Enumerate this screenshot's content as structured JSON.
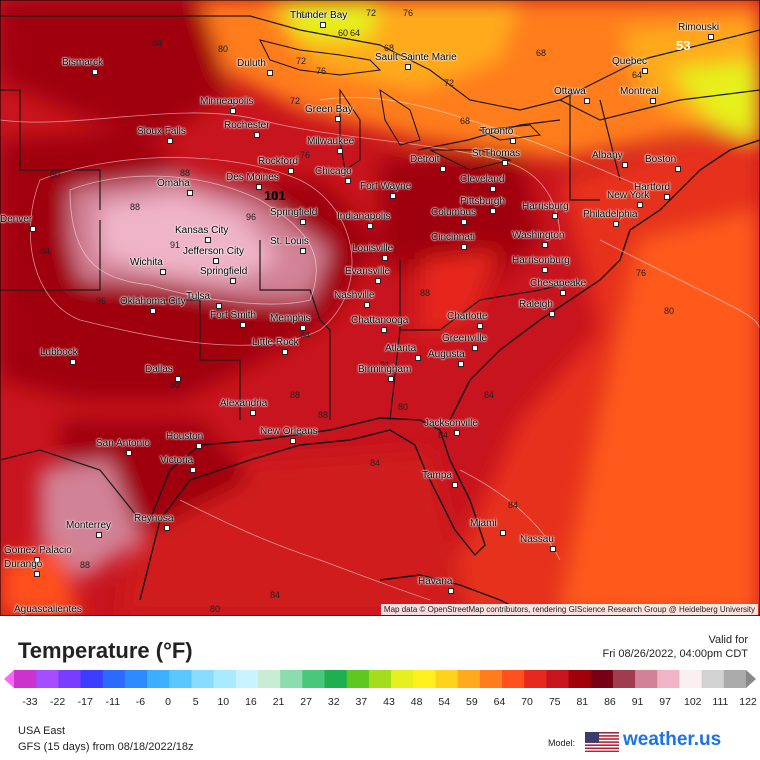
{
  "map": {
    "attribution": "Map data © OpenStreetMap contributors, rendering GIScience Research Group @ Heidelberg University",
    "cities": [
      {
        "name": "Thunder Bay"
      },
      {
        "name": "Rimouski"
      },
      {
        "name": "Bismarck"
      },
      {
        "name": "Duluth"
      },
      {
        "name": "Sault Sainte Marie"
      },
      {
        "name": "Quebec"
      },
      {
        "name": "Ottawa"
      },
      {
        "name": "Montreal"
      },
      {
        "name": "Minneapolis"
      },
      {
        "name": "Green Bay"
      },
      {
        "name": "Rochester"
      },
      {
        "name": "Sioux Falls"
      },
      {
        "name": "Milwaukee"
      },
      {
        "name": "Toronto"
      },
      {
        "name": "Albany"
      },
      {
        "name": "Boston"
      },
      {
        "name": "St Thomas"
      },
      {
        "name": "Rockford"
      },
      {
        "name": "Detroit"
      },
      {
        "name": "Chicago"
      },
      {
        "name": "Des Moines"
      },
      {
        "name": "Omaha"
      },
      {
        "name": "Cleveland"
      },
      {
        "name": "Hartford"
      },
      {
        "name": "Fort Wayne"
      },
      {
        "name": "New York"
      },
      {
        "name": "Pittsburgh"
      },
      {
        "name": "Harrisburg"
      },
      {
        "name": "Philadelphia"
      },
      {
        "name": "Springfield"
      },
      {
        "name": "Indianapolis"
      },
      {
        "name": "Columbus"
      },
      {
        "name": "Kansas City"
      },
      {
        "name": "Cincinnati"
      },
      {
        "name": "St. Louis"
      },
      {
        "name": "Washington"
      },
      {
        "name": "Jefferson City"
      },
      {
        "name": "Louisville"
      },
      {
        "name": "Wichita"
      },
      {
        "name": "Harrisonburg"
      },
      {
        "name": "Springfield"
      },
      {
        "name": "Evansville"
      },
      {
        "name": "Chesapeake"
      },
      {
        "name": "Oklahoma City"
      },
      {
        "name": "Tulsa"
      },
      {
        "name": "Nashville"
      },
      {
        "name": "Raleigh"
      },
      {
        "name": "Fort Smith"
      },
      {
        "name": "Memphis"
      },
      {
        "name": "Chattanooga"
      },
      {
        "name": "Charlotte"
      },
      {
        "name": "Greenville"
      },
      {
        "name": "Little Rock"
      },
      {
        "name": "Lubbock"
      },
      {
        "name": "Atlanta"
      },
      {
        "name": "Augusta"
      },
      {
        "name": "Birmingham"
      },
      {
        "name": "Dallas"
      },
      {
        "name": "Alexandria"
      },
      {
        "name": "Jacksonville"
      },
      {
        "name": "San Antonio"
      },
      {
        "name": "Houston"
      },
      {
        "name": "New Orleans"
      },
      {
        "name": "Victoria"
      },
      {
        "name": "Tampa"
      },
      {
        "name": "Miami"
      },
      {
        "name": "Monterrey"
      },
      {
        "name": "Reynosa"
      },
      {
        "name": "Nassau"
      },
      {
        "name": "Gomez Palacio"
      },
      {
        "name": "Havana"
      },
      {
        "name": "Durango"
      },
      {
        "name": "Aguascalientes"
      },
      {
        "name": "Denver"
      }
    ],
    "isolabels": [
      "60",
      "64",
      "72",
      "76",
      "68",
      "72",
      "76",
      "80",
      "84",
      "88",
      "91",
      "96",
      "101",
      "53",
      "64",
      "68",
      "72",
      "76",
      "80",
      "84",
      "88",
      "91",
      "96",
      "80",
      "84",
      "88",
      "91",
      "76",
      "80",
      "84",
      "88",
      "64",
      "68",
      "72",
      "84",
      "88",
      "84",
      "80",
      "84",
      "88",
      "76",
      "84",
      "80"
    ]
  },
  "legend": {
    "title": "Temperature (°F)",
    "valid_label": "Valid for",
    "valid_time": "Fri 08/26/2022, 04:00pm CDT",
    "ticks": [
      "-33",
      "-22",
      "-17",
      "-11",
      "-6",
      "0",
      "5",
      "10",
      "16",
      "21",
      "27",
      "32",
      "37",
      "43",
      "48",
      "54",
      "59",
      "64",
      "70",
      "75",
      "81",
      "86",
      "91",
      "97",
      "102",
      "111",
      "122"
    ],
    "colors": [
      "#cc33cc",
      "#a64dff",
      "#7a3dff",
      "#3d3dff",
      "#2d6bff",
      "#2d8bff",
      "#3cb0ff",
      "#5ac8ff",
      "#88dcff",
      "#aaeaff",
      "#c8f3ff",
      "#c9ecd4",
      "#8cdcb0",
      "#48c878",
      "#1eb050",
      "#5ec820",
      "#a6dc1e",
      "#e6f01e",
      "#fff01e",
      "#ffd21e",
      "#ffaa1e",
      "#ff7d1e",
      "#ff501e",
      "#e6281e",
      "#c8141e",
      "#a0000a",
      "#780014",
      "#a03c50",
      "#d28296",
      "#f0b4c8",
      "#faf0f0",
      "#d2d2d2",
      "#aaaaaa"
    ]
  },
  "footer": {
    "region": "USA East",
    "model_run": "GFS (15 days) from  08/18/2022/18z",
    "model_label": "Model:",
    "brand": "weather.us"
  }
}
